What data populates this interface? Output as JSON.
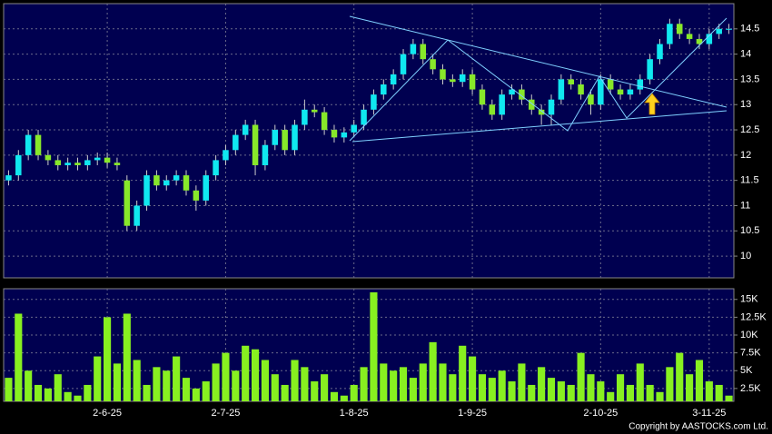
{
  "chart_data": [
    {
      "type": "candlestick",
      "categories": [
        null,
        null,
        null,
        null,
        null,
        null,
        null,
        null,
        null,
        null,
        "2-6-25",
        null,
        null,
        null,
        null,
        null,
        null,
        null,
        null,
        null,
        null,
        null,
        "2-7-25",
        null,
        null,
        null,
        null,
        null,
        null,
        null,
        null,
        null,
        null,
        null,
        null,
        "1-8-25",
        null,
        null,
        null,
        null,
        null,
        null,
        null,
        null,
        null,
        null,
        null,
        "1-9-25",
        null,
        null,
        null,
        null,
        null,
        null,
        null,
        null,
        null,
        null,
        null,
        null,
        "2-10-25",
        null,
        null,
        null,
        null,
        null,
        null,
        null,
        null,
        null,
        null,
        "3-11-25",
        null,
        null
      ],
      "open": [
        11.5,
        11.6,
        12.0,
        12.4,
        12.0,
        11.9,
        11.8,
        11.85,
        11.8,
        11.9,
        11.95,
        11.85,
        11.5,
        10.6,
        11.0,
        11.6,
        11.4,
        11.5,
        11.6,
        11.3,
        11.1,
        11.6,
        11.9,
        12.1,
        12.4,
        12.6,
        11.8,
        12.2,
        12.5,
        12.1,
        12.6,
        12.9,
        12.85,
        12.5,
        12.35,
        12.45,
        12.6,
        12.9,
        13.2,
        13.4,
        13.6,
        14.0,
        14.2,
        13.9,
        13.7,
        13.5,
        13.45,
        13.6,
        13.3,
        13.0,
        12.8,
        13.2,
        13.3,
        13.1,
        12.9,
        12.8,
        13.1,
        13.5,
        13.4,
        13.2,
        13.0,
        13.5,
        13.3,
        13.2,
        13.3,
        13.5,
        13.9,
        14.2,
        14.6,
        14.4,
        14.3,
        14.2,
        14.4,
        14.5
      ],
      "high": [
        11.7,
        12.1,
        12.5,
        12.5,
        12.1,
        12.0,
        11.95,
        11.95,
        12.0,
        12.05,
        12.05,
        11.95,
        11.6,
        11.1,
        11.7,
        11.7,
        11.6,
        11.7,
        11.7,
        11.4,
        11.7,
        12.0,
        12.2,
        12.5,
        12.7,
        12.7,
        12.3,
        12.6,
        12.6,
        12.7,
        13.1,
        13.0,
        12.95,
        12.6,
        12.55,
        12.7,
        13.0,
        13.3,
        13.5,
        13.7,
        14.1,
        14.3,
        14.3,
        14.0,
        13.8,
        13.6,
        13.7,
        13.7,
        13.4,
        13.1,
        13.3,
        13.4,
        13.4,
        13.2,
        13.0,
        13.2,
        13.6,
        13.6,
        13.5,
        13.3,
        13.6,
        13.6,
        13.4,
        13.4,
        13.6,
        14.0,
        14.3,
        14.7,
        14.7,
        14.5,
        14.4,
        14.5,
        14.6,
        14.6
      ],
      "low": [
        11.4,
        11.5,
        11.9,
        11.9,
        11.8,
        11.7,
        11.7,
        11.7,
        11.7,
        11.8,
        11.75,
        11.7,
        10.5,
        10.5,
        10.9,
        11.3,
        11.3,
        11.4,
        11.2,
        10.9,
        11.0,
        11.5,
        11.8,
        12.0,
        12.3,
        11.6,
        11.7,
        12.1,
        12.0,
        12.0,
        12.5,
        12.75,
        12.4,
        12.25,
        12.25,
        12.35,
        12.5,
        12.8,
        13.1,
        13.3,
        13.5,
        13.9,
        13.8,
        13.6,
        13.4,
        13.35,
        13.35,
        13.2,
        12.9,
        12.7,
        12.7,
        13.1,
        13.0,
        12.8,
        12.6,
        12.6,
        13.0,
        13.3,
        13.1,
        12.8,
        12.9,
        13.2,
        13.1,
        13.1,
        13.2,
        13.4,
        13.8,
        14.1,
        14.3,
        14.2,
        14.1,
        14.1,
        14.3,
        14.4
      ],
      "close": [
        11.6,
        12.0,
        12.4,
        12.0,
        11.9,
        11.8,
        11.85,
        11.8,
        11.9,
        11.95,
        11.85,
        11.8,
        10.6,
        11.0,
        11.6,
        11.4,
        11.5,
        11.6,
        11.3,
        11.1,
        11.6,
        11.9,
        12.1,
        12.4,
        12.6,
        11.8,
        12.2,
        12.5,
        12.1,
        12.6,
        12.9,
        12.85,
        12.5,
        12.35,
        12.45,
        12.6,
        12.9,
        13.2,
        13.4,
        13.6,
        14.0,
        14.2,
        13.9,
        13.7,
        13.5,
        13.45,
        13.6,
        13.3,
        13.0,
        12.8,
        13.2,
        13.3,
        13.1,
        12.9,
        12.8,
        13.1,
        13.5,
        13.4,
        13.2,
        13.0,
        13.5,
        13.3,
        13.2,
        13.3,
        13.5,
        13.9,
        14.2,
        14.6,
        14.4,
        14.3,
        14.2,
        14.4,
        14.5,
        14.5
      ],
      "up_color": "#10e8f0",
      "down_color": "#88e82a",
      "ylim": [
        9.57,
        15.0
      ],
      "yticks": [
        10,
        10.5,
        11,
        11.5,
        12,
        12.5,
        13,
        13.5,
        14,
        14.5
      ],
      "grid": true
    },
    {
      "type": "bar",
      "values": [
        4000,
        13000,
        5000,
        3000,
        2500,
        4500,
        2000,
        1500,
        3000,
        7000,
        12500,
        6000,
        13000,
        6500,
        3000,
        5500,
        5000,
        7000,
        4000,
        2500,
        3500,
        6000,
        7500,
        5000,
        8500,
        8000,
        6500,
        4500,
        3000,
        6500,
        5500,
        3500,
        4500,
        2000,
        1500,
        3000,
        5500,
        16000,
        6000,
        5000,
        5500,
        4000,
        6000,
        9000,
        6000,
        4500,
        8500,
        7000,
        4500,
        4000,
        5000,
        3500,
        6000,
        3000,
        5500,
        4000,
        3500,
        3000,
        7500,
        4500,
        3500,
        2000,
        4500,
        3000,
        6000,
        3000,
        2000,
        5500,
        7500,
        4500,
        6500,
        3500,
        3000,
        1500
      ],
      "color": "#88f020",
      "ylim": [
        700,
        16500
      ],
      "yticks": [
        {
          "value": 2500,
          "label": "2.5K"
        },
        {
          "value": 5000,
          "label": "5K"
        },
        {
          "value": 7500,
          "label": "7.5K"
        },
        {
          "value": 10000,
          "label": "10K"
        },
        {
          "value": 12500,
          "label": "12.5K"
        },
        {
          "value": 15000,
          "label": "15K"
        }
      ],
      "grid": true
    }
  ],
  "copyright": "Copyright by AASTOCKS.com Ltd."
}
